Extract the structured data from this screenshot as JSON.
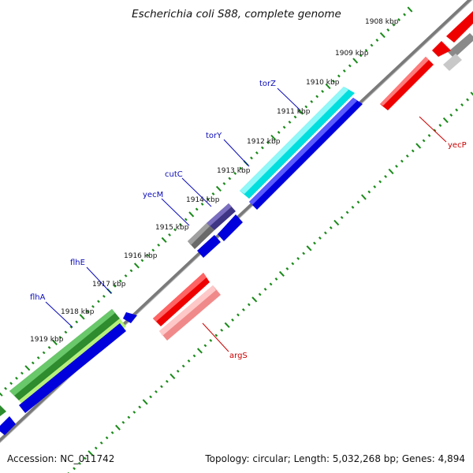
{
  "title": "Escherichia coli S88, complete genome",
  "footer": {
    "accession": "Accession: NC_011742",
    "summary": "Topology: circular; Length: 5,032,268 bp; Genes: 4,894"
  },
  "colors": {
    "backbone": "#808080",
    "tick": "#1a8a1a",
    "forward_gene": "#0000ee",
    "reverse_gene": "#ee0000",
    "gene_label_forward": "#0b0bb8",
    "gene_label_reverse": "#cc0000",
    "cyan_gene": "#00e0e0",
    "dark_purple_gene": "#4a3d8a",
    "gray_gene": "#6a6a6a",
    "green_gene": "#2e8b2e",
    "light_green_gene": "#b6f07a",
    "pink_gene": "#f08a8a"
  },
  "kbp_labels": [
    "1908 kbp",
    "1909 kbp",
    "1910 kbp",
    "1911 kbp",
    "1912 kbp",
    "1913 kbp",
    "1914 kbp",
    "1915 kbp",
    "1916 kbp",
    "1917 kbp",
    "1918 kbp",
    "1919 kbp"
  ],
  "gene_labels_forward": [
    "torZ",
    "torY",
    "cutC",
    "yecM",
    "flhE",
    "flhA"
  ],
  "gene_labels_reverse": [
    "yecP",
    "argS"
  ]
}
